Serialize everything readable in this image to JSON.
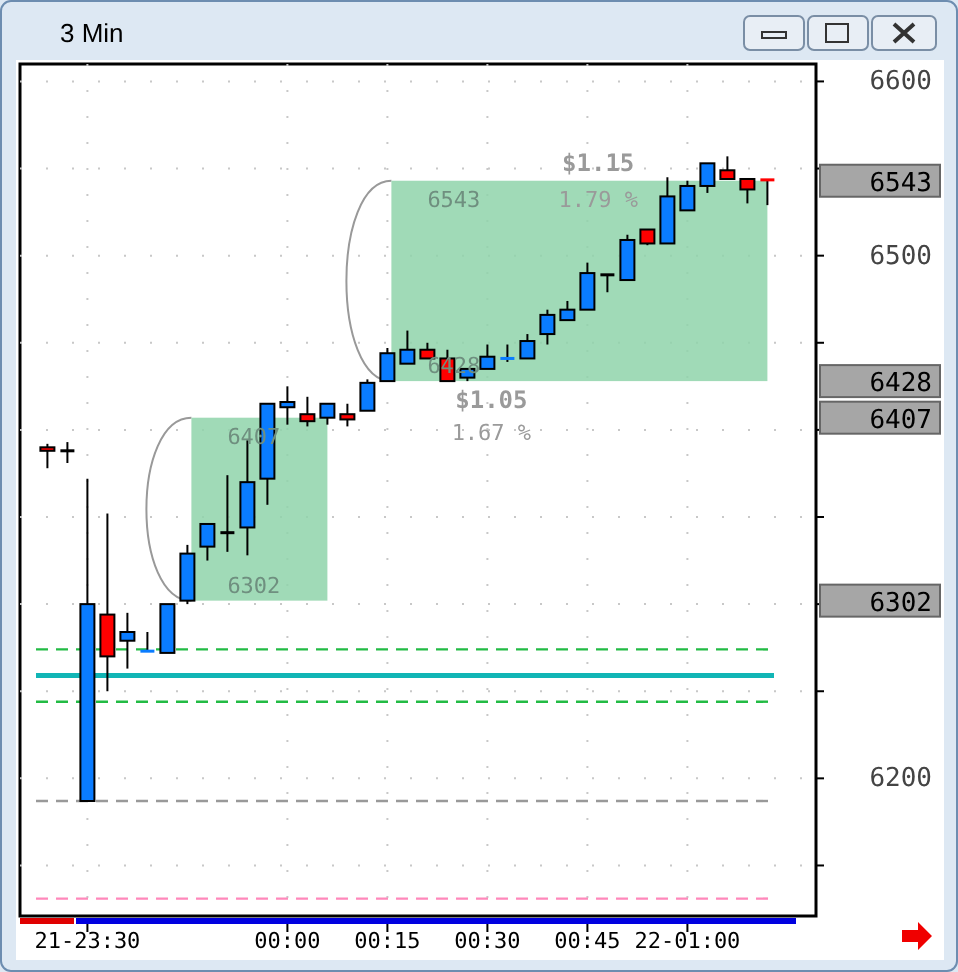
{
  "chart_data": {
    "type": "candlestick",
    "title": "3 Min",
    "categories": [
      null,
      null,
      "21-23:30",
      null,
      null,
      null,
      null,
      null,
      null,
      null,
      null,
      null,
      "00:00",
      null,
      null,
      null,
      null,
      "00:15",
      null,
      null,
      null,
      null,
      "00:30",
      null,
      null,
      null,
      null,
      "00:45",
      null,
      null,
      null,
      null,
      "22-01:00",
      null,
      null,
      null,
      null
    ],
    "ohlc": [
      [
        6390,
        6392,
        6378,
        6388
      ],
      [
        6388,
        6393,
        6381,
        6388
      ],
      [
        6187,
        6372,
        6187,
        6300
      ],
      [
        6294,
        6352,
        6250,
        6270
      ],
      [
        6279,
        6295,
        6263,
        6284
      ],
      [
        6273,
        6284,
        6273,
        6273
      ],
      [
        6272,
        6300,
        6272,
        6300
      ],
      [
        6302,
        6334,
        6300,
        6329
      ],
      [
        6333,
        6346,
        6325,
        6346
      ],
      [
        6341,
        6374,
        6330,
        6341
      ],
      [
        6344,
        6394,
        6328,
        6370
      ],
      [
        6372,
        6415,
        6357,
        6415
      ],
      [
        6413,
        6425,
        6403,
        6416
      ],
      [
        6409,
        6419,
        6402,
        6405
      ],
      [
        6407,
        6415,
        6403,
        6415
      ],
      [
        6409,
        6415,
        6402,
        6406
      ],
      [
        6411,
        6429,
        6411,
        6427
      ],
      [
        6428,
        6447,
        6428,
        6444
      ],
      [
        6438,
        6457,
        6438,
        6446
      ],
      [
        6446,
        6450,
        6441,
        6441
      ],
      [
        6441,
        6446,
        6428,
        6428
      ],
      [
        6430,
        6435,
        6428,
        6435
      ],
      [
        6435,
        6449,
        6435,
        6442
      ],
      [
        6441,
        6449,
        6439,
        6441
      ],
      [
        6441,
        6455,
        6441,
        6451
      ],
      [
        6455,
        6469,
        6449,
        6466
      ],
      [
        6463,
        6474,
        6463,
        6469
      ],
      [
        6469,
        6496,
        6469,
        6490
      ],
      [
        6489,
        6489,
        6479,
        6489
      ],
      [
        6486,
        6512,
        6486,
        6509
      ],
      [
        6515,
        6515,
        6506,
        6507
      ],
      [
        6507,
        6545,
        6507,
        6534
      ],
      [
        6526,
        6543,
        6526,
        6540
      ],
      [
        6540,
        6553,
        6536,
        6553
      ],
      [
        6549,
        6557,
        6544,
        6544
      ],
      [
        6544,
        6544,
        6530,
        6538
      ],
      [
        6544,
        6544,
        6529,
        6543
      ]
    ],
    "colors": [
      "#ff0000",
      "#000000",
      "#0a7cff",
      "#ff0000",
      "#0a7cff",
      "#0a7cff",
      "#0a7cff",
      "#0a7cff",
      "#0a7cff",
      "#000000",
      "#0a7cff",
      "#0a7cff",
      "#0a7cff",
      "#ff0000",
      "#0a7cff",
      "#ff0000",
      "#0a7cff",
      "#0a7cff",
      "#0a7cff",
      "#ff0000",
      "#ff0000",
      "#0a7cff",
      "#0a7cff",
      "#0a7cff",
      "#0a7cff",
      "#0a7cff",
      "#0a7cff",
      "#0a7cff",
      "#000000",
      "#0a7cff",
      "#ff0000",
      "#0a7cff",
      "#0a7cff",
      "#0a7cff",
      "#ff0000",
      "#ff0000",
      "#ff0000"
    ],
    "ylim": [
      6121,
      6610
    ],
    "yticks": [
      {
        "value": 6150,
        "label": null
      },
      6200,
      {
        "value": 6250,
        "label": null
      },
      {
        "value": 6300,
        "label": null
      },
      {
        "value": 6350,
        "label": null
      },
      {
        "value": 6400,
        "label": null
      },
      {
        "value": 6450,
        "label": null
      },
      6500,
      {
        "value": 6550,
        "label": null
      },
      6600
    ],
    "grid": true,
    "ref_lines": [
      {
        "axis": "y",
        "value": 6274,
        "color": "#22bb44",
        "line_style": "dashed"
      },
      {
        "axis": "y",
        "value": 6259,
        "color": "#11b5b5",
        "line_style": "solid"
      },
      {
        "axis": "y",
        "value": 6244,
        "color": "#22bb44",
        "line_style": "dashed"
      },
      {
        "axis": "y",
        "value": 6187,
        "color": "#999999",
        "line_style": "dashed"
      },
      {
        "axis": "y",
        "value": 6131,
        "color": "#ff88bb",
        "line_style": "dashed"
      }
    ],
    "bands": [
      {
        "axis": "y",
        "from": 6302,
        "to": 6407,
        "color": "#8fd4aa"
      },
      {
        "axis": "y",
        "from": 6428,
        "to": 6543,
        "color": "#8fd4aa"
      }
    ],
    "annotations": [
      "6407",
      "6302",
      "$1.05",
      "1.67 %",
      "6543",
      "6428",
      "$1.15",
      "1.79 %",
      "6407",
      "6302",
      "6543",
      "6428"
    ]
  }
}
